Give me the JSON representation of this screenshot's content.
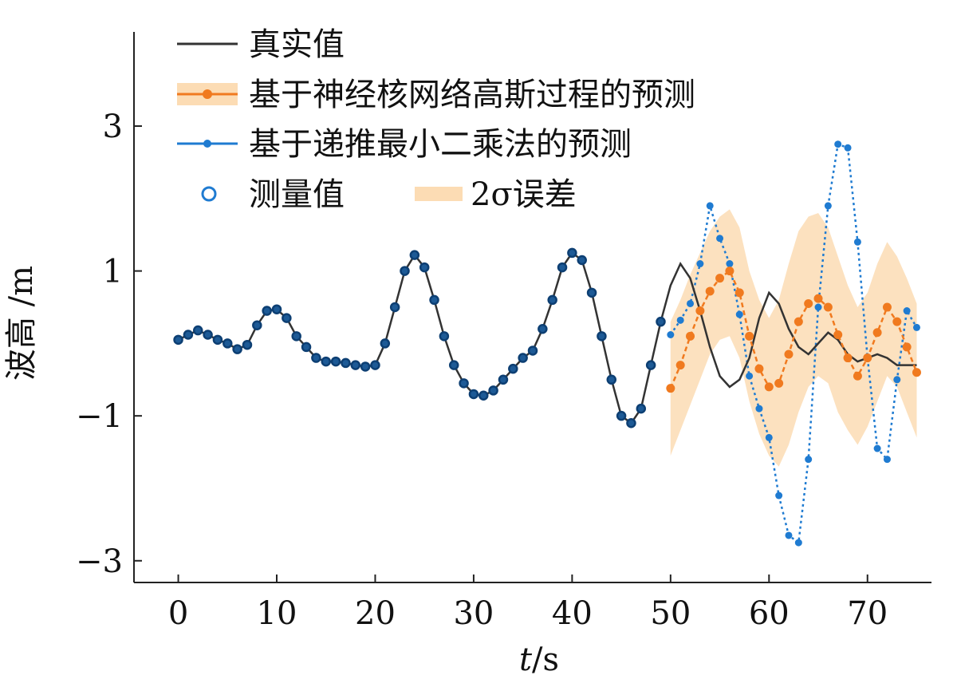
{
  "chart_data": {
    "type": "line",
    "xlabel_var": "t",
    "xlabel_unit": "/s",
    "ylabel": "波高 /m",
    "xlim": [
      -4.5,
      76.5
    ],
    "ylim": [
      -3.3,
      4.3
    ],
    "xticks": [
      0,
      10,
      20,
      30,
      40,
      50,
      60,
      70
    ],
    "yticks": [
      {
        "value": 3,
        "label": "3"
      },
      {
        "value": 1,
        "label": "1"
      },
      {
        "value": -1,
        "label": "−1"
      },
      {
        "value": -3,
        "label": "−3"
      }
    ],
    "legend": [
      {
        "key": "true",
        "label": "真实值"
      },
      {
        "key": "nkgp",
        "label": "基于神经核网络高斯过程的预测"
      },
      {
        "key": "rls",
        "label": "基于递推最小二乘法的预测"
      },
      {
        "key": "meas",
        "label": "测量值"
      },
      {
        "key": "band",
        "label": "2σ误差"
      }
    ],
    "series": [
      {
        "key": "true",
        "name": "真实值",
        "color": "#333333",
        "x": [
          0,
          1,
          2,
          3,
          4,
          5,
          6,
          7,
          8,
          9,
          10,
          11,
          12,
          13,
          14,
          15,
          16,
          17,
          18,
          19,
          20,
          21,
          22,
          23,
          24,
          25,
          26,
          27,
          28,
          29,
          30,
          31,
          32,
          33,
          34,
          35,
          36,
          37,
          38,
          39,
          40,
          41,
          42,
          43,
          44,
          45,
          46,
          47,
          48,
          49,
          50,
          51,
          52,
          53,
          54,
          55,
          56,
          57,
          58,
          59,
          60,
          61,
          62,
          63,
          64,
          65,
          66,
          67,
          68,
          69,
          70,
          71,
          72,
          73,
          74,
          75
        ],
        "values": [
          0.05,
          0.12,
          0.18,
          0.12,
          0.05,
          0.0,
          -0.08,
          -0.02,
          0.25,
          0.45,
          0.47,
          0.35,
          0.1,
          -0.05,
          -0.2,
          -0.25,
          -0.25,
          -0.27,
          -0.3,
          -0.32,
          -0.3,
          0.0,
          0.5,
          1.0,
          1.22,
          1.05,
          0.6,
          0.1,
          -0.3,
          -0.55,
          -0.7,
          -0.72,
          -0.65,
          -0.5,
          -0.35,
          -0.2,
          -0.1,
          0.2,
          0.6,
          1.05,
          1.25,
          1.15,
          0.7,
          0.1,
          -0.5,
          -1.0,
          -1.1,
          -0.9,
          -0.3,
          0.3,
          0.8,
          1.1,
          0.9,
          0.45,
          -0.05,
          -0.45,
          -0.6,
          -0.5,
          -0.2,
          0.35,
          0.7,
          0.55,
          0.2,
          -0.05,
          -0.15,
          0.0,
          0.15,
          0.05,
          -0.15,
          -0.25,
          -0.2,
          -0.15,
          -0.2,
          -0.3,
          -0.3,
          -0.3
        ]
      },
      {
        "key": "nkgp",
        "name": "基于神经核网络高斯过程的预测",
        "color": "#f07a1f",
        "x": [
          50,
          51,
          52,
          53,
          54,
          55,
          56,
          57,
          58,
          59,
          60,
          61,
          62,
          63,
          64,
          65,
          66,
          67,
          68,
          69,
          70,
          71,
          72,
          73,
          74,
          75
        ],
        "values": [
          -0.62,
          -0.3,
          0.1,
          0.45,
          0.72,
          0.9,
          1.0,
          0.7,
          0.1,
          -0.35,
          -0.6,
          -0.55,
          -0.15,
          0.3,
          0.55,
          0.62,
          0.5,
          0.12,
          -0.2,
          -0.45,
          -0.2,
          0.15,
          0.5,
          0.3,
          -0.05,
          -0.4
        ]
      },
      {
        "key": "rls",
        "name": "基于递推最小二乘法的预测",
        "color": "#1f7bd1",
        "x": [
          50,
          51,
          52,
          53,
          54,
          55,
          56,
          57,
          58,
          59,
          60,
          61,
          62,
          63,
          64,
          65,
          66,
          67,
          68,
          69,
          70,
          71,
          72,
          73,
          74,
          75
        ],
        "values": [
          0.12,
          0.32,
          0.55,
          1.1,
          1.9,
          1.45,
          1.1,
          0.4,
          -0.45,
          -0.9,
          -1.3,
          -2.1,
          -2.65,
          -2.75,
          -1.6,
          0.5,
          1.9,
          2.75,
          2.7,
          1.4,
          -0.2,
          -1.45,
          -1.6,
          -0.5,
          0.45,
          0.22
        ]
      },
      {
        "key": "meas",
        "name": "测量值",
        "color": "#1f7bd1",
        "x": [
          0,
          1,
          2,
          3,
          4,
          5,
          6,
          7,
          8,
          9,
          10,
          11,
          12,
          13,
          14,
          15,
          16,
          17,
          18,
          19,
          20,
          21,
          22,
          23,
          24,
          25,
          26,
          27,
          28,
          29,
          30,
          31,
          32,
          33,
          34,
          35,
          36,
          37,
          38,
          39,
          40,
          41,
          42,
          43,
          44,
          45,
          46,
          47,
          48,
          49
        ],
        "values": [
          0.05,
          0.12,
          0.18,
          0.12,
          0.05,
          0.0,
          -0.08,
          -0.02,
          0.25,
          0.45,
          0.47,
          0.35,
          0.1,
          -0.05,
          -0.2,
          -0.25,
          -0.25,
          -0.27,
          -0.3,
          -0.32,
          -0.3,
          0.0,
          0.5,
          1.0,
          1.22,
          1.05,
          0.6,
          0.1,
          -0.3,
          -0.55,
          -0.7,
          -0.72,
          -0.65,
          -0.5,
          -0.35,
          -0.2,
          -0.1,
          0.2,
          0.6,
          1.05,
          1.25,
          1.15,
          0.7,
          0.1,
          -0.5,
          -1.0,
          -1.1,
          -0.9,
          -0.3,
          0.3
        ]
      }
    ],
    "error_band": {
      "key": "band",
      "name": "2σ误差",
      "color": "#fcdcb4",
      "x": [
        50,
        51,
        52,
        53,
        54,
        55,
        56,
        57,
        58,
        59,
        60,
        61,
        62,
        63,
        64,
        65,
        66,
        67,
        68,
        69,
        70,
        71,
        72,
        73,
        74,
        75
      ],
      "upper": [
        0.3,
        0.6,
        0.95,
        1.25,
        1.55,
        1.75,
        1.85,
        1.6,
        1.0,
        0.6,
        0.35,
        0.6,
        1.1,
        1.55,
        1.75,
        1.8,
        1.6,
        1.2,
        0.8,
        0.5,
        0.7,
        1.1,
        1.4,
        1.2,
        0.9,
        0.55
      ],
      "lower": [
        -1.55,
        -1.2,
        -0.85,
        -0.5,
        -0.15,
        0.05,
        0.1,
        -0.2,
        -0.8,
        -1.25,
        -1.55,
        -1.7,
        -1.4,
        -0.95,
        -0.6,
        -0.45,
        -0.55,
        -0.95,
        -1.2,
        -1.4,
        -1.15,
        -0.8,
        -0.45,
        -0.6,
        -0.95,
        -1.3
      ]
    }
  }
}
